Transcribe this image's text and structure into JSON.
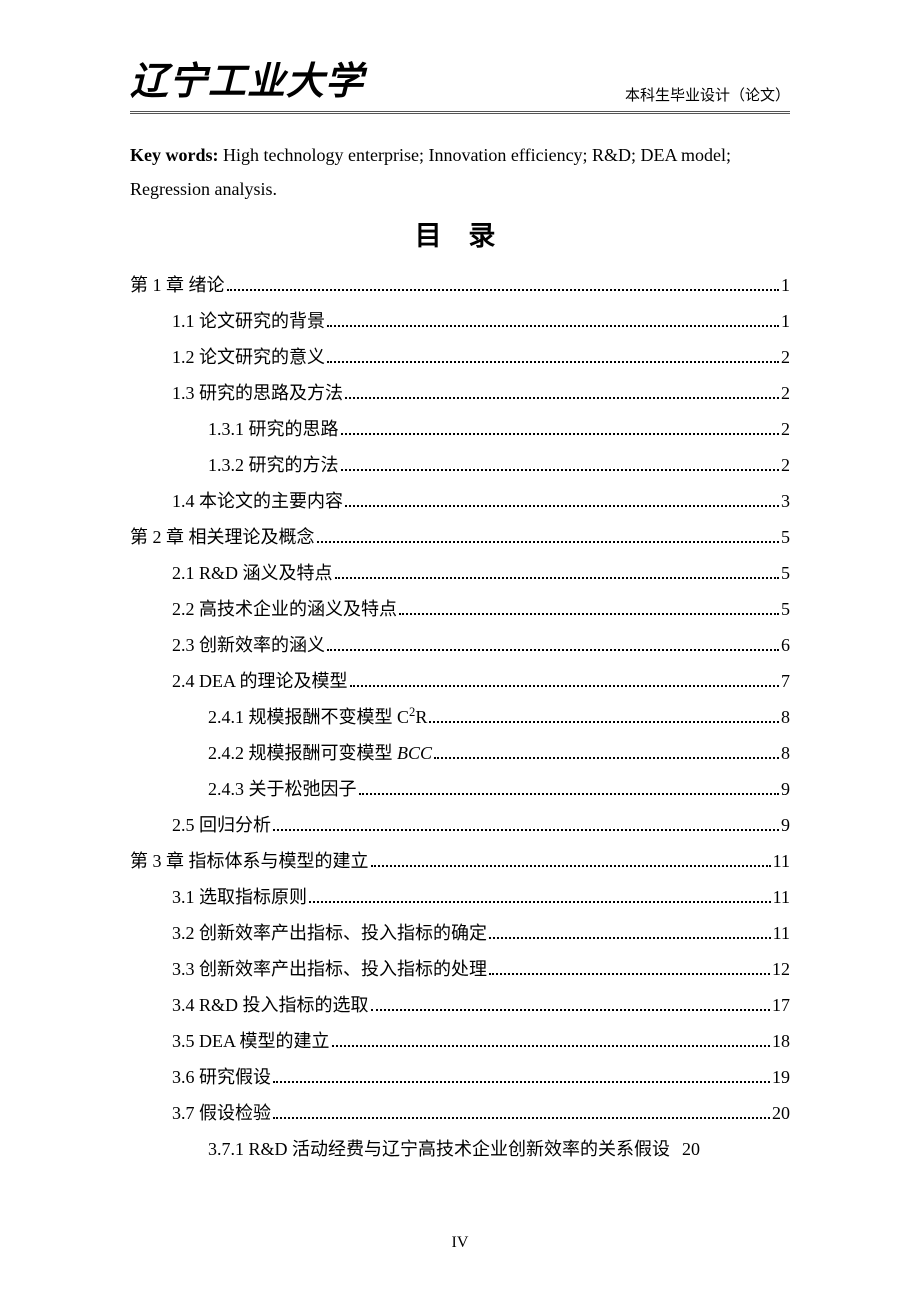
{
  "header": {
    "logo": "辽宁工业大学",
    "right": "本科生毕业设计（论文）"
  },
  "keywords": {
    "label": "Key words:",
    "text": " High technology enterprise; Innovation efficiency; R&D; DEA model; Regression analysis."
  },
  "toc_title": "目 录",
  "toc": [
    {
      "level": 1,
      "label": "第 1 章  绪论 ",
      "page": "1"
    },
    {
      "level": 2,
      "label": "1.1  论文研究的背景 ",
      "page": "1"
    },
    {
      "level": 2,
      "label": "1.2  论文研究的意义 ",
      "page": "2"
    },
    {
      "level": 2,
      "label": "1.3  研究的思路及方法 ",
      "page": "2"
    },
    {
      "level": 3,
      "label": "1.3.1  研究的思路 ",
      "page": "2"
    },
    {
      "level": 3,
      "label": "1.3.2  研究的方法 ",
      "page": "2"
    },
    {
      "level": 2,
      "label": "1.4  本论文的主要内容 ",
      "page": "3"
    },
    {
      "level": 1,
      "label": "第 2 章  相关理论及概念 ",
      "page": "5"
    },
    {
      "level": 2,
      "label": "2.1 R&D 涵义及特点",
      "page": "5"
    },
    {
      "level": 2,
      "label": "2.2 高技术企业的涵义及特点 ",
      "page": "5"
    },
    {
      "level": 2,
      "label": "2.3 创新效率的涵义 ",
      "page": "6"
    },
    {
      "level": 2,
      "label": "2.4 DEA 的理论及模型 ",
      "page": "7"
    },
    {
      "level": 3,
      "label": "2.4.1 规模报酬不变模型 C",
      "sup": "2",
      "after_sup": "R",
      "page": "8"
    },
    {
      "level": 3,
      "label": "2.4.2 规模报酬可变模型 ",
      "italic": "BCC",
      "after_italic": " ",
      "page": "8"
    },
    {
      "level": 3,
      "label": "2.4.3 关于松弛因子 ",
      "page": "9"
    },
    {
      "level": 2,
      "label": "2.5 回归分析 ",
      "page": "9"
    },
    {
      "level": 1,
      "label": "第 3 章  指标体系与模型的建立 ",
      "page": "11"
    },
    {
      "level": 2,
      "label": "3.1 选取指标原则 ",
      "page": "11"
    },
    {
      "level": 2,
      "label": "3.2 创新效率产出指标、投入指标的确定 ",
      "page": "11"
    },
    {
      "level": 2,
      "label": "3.3 创新效率产出指标、投入指标的处理 ",
      "page": "12"
    },
    {
      "level": 2,
      "label": "3.4 R&D 投入指标的选取",
      "page": "17"
    },
    {
      "level": 2,
      "label": "3.5 DEA 模型的建立 ",
      "page": "18"
    },
    {
      "level": 2,
      "label": "3.6 研究假设 ",
      "page": "19"
    },
    {
      "level": 2,
      "label": "3.7  假设检验 ",
      "page": "20"
    },
    {
      "level": 3,
      "label": "3.7.1 R&D 活动经费与辽宁高技术企业创新效率的关系假设",
      "page": "20",
      "nodots": true
    }
  ],
  "page_number": "IV"
}
